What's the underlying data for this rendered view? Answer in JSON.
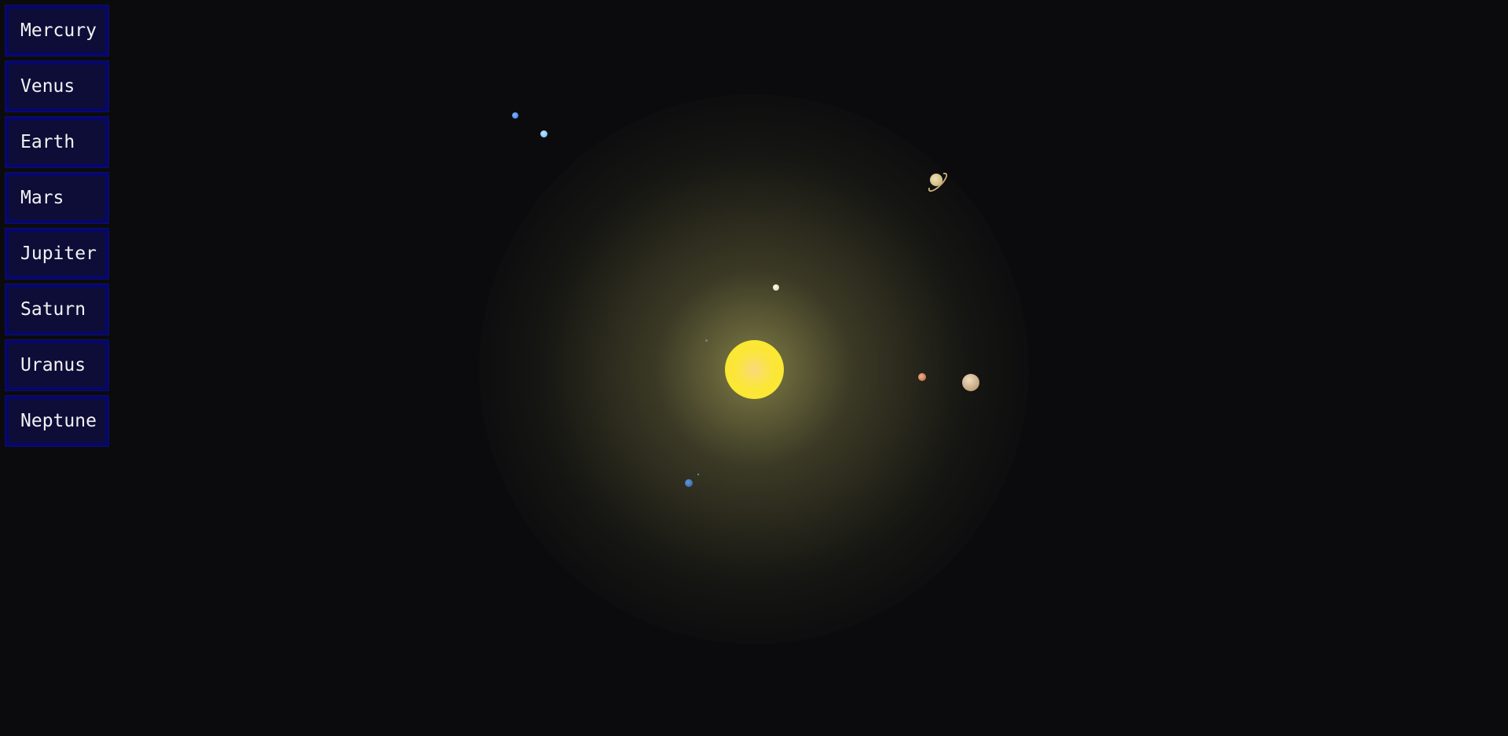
{
  "menu": {
    "items": [
      {
        "label": "Mercury"
      },
      {
        "label": "Venus"
      },
      {
        "label": "Earth"
      },
      {
        "label": "Mars"
      },
      {
        "label": "Jupiter"
      },
      {
        "label": "Saturn"
      },
      {
        "label": "Uranus"
      },
      {
        "label": "Neptune"
      }
    ]
  },
  "colors": {
    "background": "#0b0b0e",
    "button_bg": "#0d0d38",
    "button_border": "#06066e",
    "button_text": "#f2f2f2",
    "sun": "#fbe92a"
  }
}
